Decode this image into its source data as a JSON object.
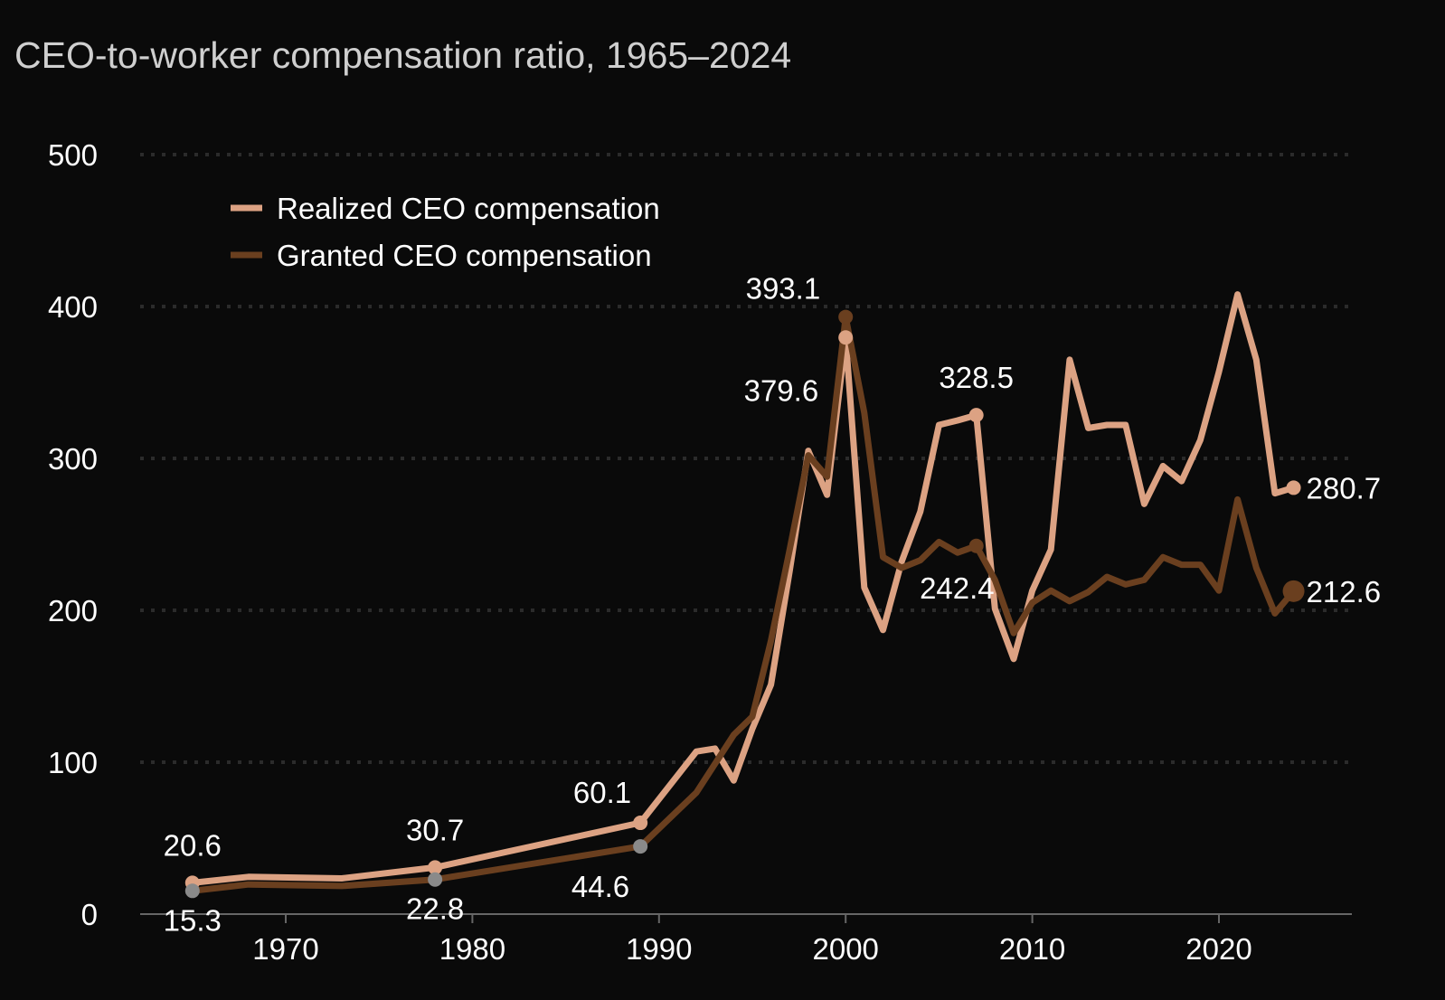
{
  "chart_data": {
    "type": "line",
    "title": "CEO-to-worker compensation ratio, 1965–2024",
    "xlabel": "",
    "ylabel": "",
    "xlim": [
      1962,
      2027
    ],
    "ylim": [
      0,
      500
    ],
    "yticks": [
      0,
      100,
      200,
      300,
      400,
      500
    ],
    "xticks": [
      1970,
      1980,
      1990,
      2000,
      2010,
      2020
    ],
    "grid": true,
    "legend_placement": "top-left",
    "colors": {
      "realized": "#dca283",
      "granted": "#6a3f1f",
      "marker_gray": "#8a8a8a",
      "grid": "#2b2b2b",
      "axis": "#666666"
    },
    "series": [
      {
        "key": "realized",
        "name": "Realized CEO compensation",
        "x": [
          1965,
          1968,
          1973,
          1978,
          1989,
          1992,
          1993,
          1994,
          1995,
          1996,
          1997,
          1998,
          1999,
          2000,
          2001,
          2002,
          2003,
          2004,
          2005,
          2006,
          2007,
          2008,
          2009,
          2010,
          2011,
          2012,
          2013,
          2014,
          2015,
          2016,
          2017,
          2018,
          2019,
          2020,
          2021,
          2022,
          2023,
          2024
        ],
        "y": [
          20.6,
          24.5,
          23.5,
          30.7,
          60.1,
          107,
          109,
          88,
          122,
          151,
          226,
          305,
          276,
          379.6,
          215,
          187,
          232,
          265,
          322,
          325,
          328.5,
          201,
          168,
          213,
          240,
          365,
          320,
          322,
          322,
          270,
          295,
          285,
          312,
          357,
          408,
          365,
          277,
          280.7
        ]
      },
      {
        "key": "granted",
        "name": "Granted CEO compensation",
        "x": [
          1965,
          1968,
          1973,
          1978,
          1989,
          1992,
          1994,
          1995,
          1996,
          1997,
          1998,
          1999,
          2000,
          2001,
          2002,
          2003,
          2004,
          2005,
          2006,
          2007,
          2008,
          2009,
          2010,
          2011,
          2012,
          2013,
          2014,
          2015,
          2016,
          2017,
          2018,
          2019,
          2020,
          2021,
          2022,
          2023,
          2024
        ],
        "y": [
          15.3,
          19.5,
          18.5,
          22.8,
          44.6,
          80,
          118,
          130,
          180,
          240,
          302,
          288,
          393.1,
          330,
          235,
          228,
          233,
          245,
          238,
          242.4,
          220,
          185,
          205,
          213,
          206,
          212,
          222,
          217,
          220,
          235,
          230,
          230,
          213,
          273,
          228,
          198,
          212.6
        ]
      }
    ],
    "annotations": [
      {
        "series": "realized",
        "x": 1965,
        "value": 20.6,
        "text": "20.6",
        "placement": "above",
        "marker": "realized"
      },
      {
        "series": "granted",
        "x": 1965,
        "value": 15.3,
        "text": "15.3",
        "placement": "below",
        "marker": "gray"
      },
      {
        "series": "realized",
        "x": 1978,
        "value": 30.7,
        "text": "30.7",
        "placement": "above",
        "marker": "realized"
      },
      {
        "series": "granted",
        "x": 1978,
        "value": 22.8,
        "text": "22.8",
        "placement": "below",
        "marker": "gray"
      },
      {
        "series": "realized",
        "x": 1989,
        "value": 60.1,
        "text": "60.1",
        "placement": "above-left",
        "marker": "realized"
      },
      {
        "series": "granted",
        "x": 1989,
        "value": 44.6,
        "text": "44.6",
        "placement": "below-left",
        "marker": "gray"
      },
      {
        "series": "granted",
        "x": 2000,
        "value": 393.1,
        "text": "393.1",
        "placement": "top-left",
        "marker": "granted"
      },
      {
        "series": "realized",
        "x": 2000,
        "value": 379.6,
        "text": "379.6",
        "placement": "below-left",
        "marker": "realized"
      },
      {
        "series": "realized",
        "x": 2007,
        "value": 328.5,
        "text": "328.5",
        "placement": "above",
        "marker": "realized"
      },
      {
        "series": "granted",
        "x": 2007,
        "value": 242.4,
        "text": "242.4",
        "placement": "below-left",
        "marker": "granted"
      },
      {
        "series": "realized",
        "x": 2024,
        "value": 280.7,
        "text": "280.7",
        "placement": "right",
        "marker": "realized"
      },
      {
        "series": "granted",
        "x": 2024,
        "value": 212.6,
        "text": "212.6",
        "placement": "right",
        "marker": "granted-large"
      }
    ]
  }
}
